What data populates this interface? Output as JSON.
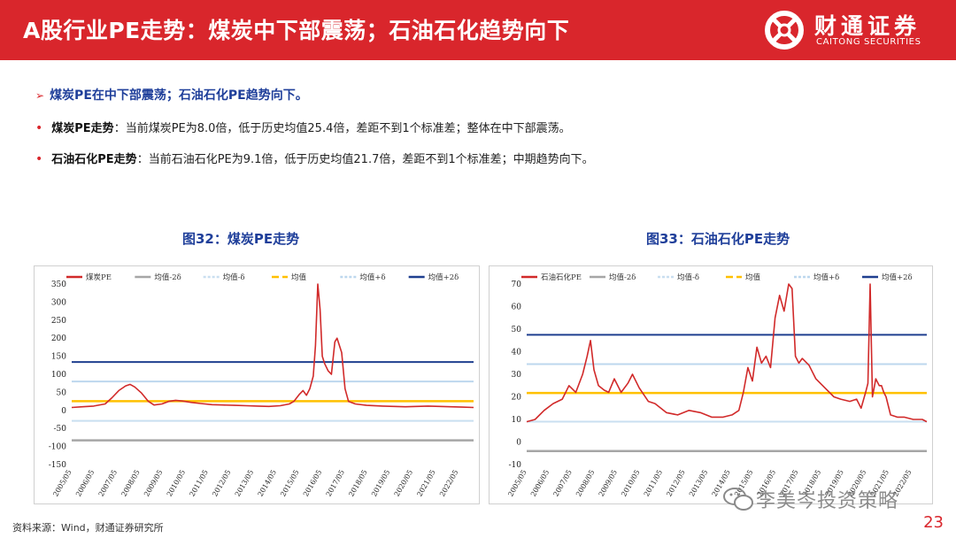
{
  "header": {
    "title": "A股行业PE走势：煤炭中下部震荡；石油石化趋势向下",
    "logo_cn": "财通证券",
    "logo_en": "CAITONG SECURITIES",
    "bg_color": "#d9262c"
  },
  "summary": {
    "arrow_icon": "➢",
    "text": "煤炭PE在中下部震荡；石油石化PE趋势向下。"
  },
  "bullets": [
    {
      "label": "煤炭PE走势",
      "text": "：当前煤炭PE为8.0倍，低于历史均值25.4倍，差距不到1个标准差；整体在中下部震荡。"
    },
    {
      "label": "石油石化PE走势",
      "text": "：当前石油石化PE为9.1倍，低于历史均值21.7倍，差距不到1个标准差；中期趋势向下。"
    }
  ],
  "figures": [
    {
      "title": "图32：煤炭PE走势"
    },
    {
      "title": "图33：石油石化PE走势"
    }
  ],
  "chart_data": [
    {
      "type": "line",
      "title": "图32：煤炭PE走势",
      "legend": [
        "煤炭PE",
        "均值-2δ",
        "均值-δ",
        "均值",
        "均值+δ",
        "均值+2δ"
      ],
      "ylim": [
        -150,
        350
      ],
      "yticks": [
        350,
        300,
        250,
        200,
        150,
        100,
        50,
        0,
        -50,
        -100,
        -150
      ],
      "xticks": [
        "2005/05",
        "2006/05",
        "2007/05",
        "2008/05",
        "2009/05",
        "2010/05",
        "2011/05",
        "2012/05",
        "2013/05",
        "2014/05",
        "2015/05",
        "2016/05",
        "2017/05",
        "2018/05",
        "2019/05",
        "2020/05",
        "2021/05",
        "2022/05"
      ],
      "xrange": [
        2005.33,
        2023.0
      ],
      "bands": {
        "mean_minus_2sd": -83,
        "mean_minus_sd": -29,
        "mean": 25.4,
        "mean_plus_sd": 80,
        "mean_plus_2sd": 134
      },
      "series": [
        {
          "name": "煤炭PE",
          "x": [
            2005.33,
            2005.8,
            2006.3,
            2006.8,
            2007.1,
            2007.4,
            2007.7,
            2007.9,
            2008.1,
            2008.4,
            2008.7,
            2008.95,
            2009.3,
            2009.6,
            2009.9,
            2010.2,
            2010.6,
            2011.0,
            2011.5,
            2012.0,
            2012.5,
            2013.0,
            2013.5,
            2014.0,
            2014.5,
            2014.9,
            2015.1,
            2015.35,
            2015.5,
            2015.65,
            2015.8,
            2015.95,
            2016.05,
            2016.15,
            2016.25,
            2016.35,
            2016.45,
            2016.6,
            2016.75,
            2016.9,
            2017.0,
            2017.1,
            2017.2,
            2017.35,
            2017.5,
            2017.8,
            2018.3,
            2019.0,
            2019.5,
            2020.0,
            2020.5,
            2021.0,
            2021.5,
            2022.0,
            2022.5,
            2023.0
          ],
          "y": [
            8,
            10,
            12,
            18,
            35,
            55,
            68,
            72,
            65,
            48,
            25,
            15,
            18,
            25,
            28,
            26,
            22,
            19,
            16,
            15,
            14,
            13,
            12,
            11,
            13,
            18,
            25,
            45,
            55,
            42,
            60,
            95,
            180,
            350,
            280,
            150,
            130,
            110,
            100,
            190,
            200,
            180,
            160,
            60,
            25,
            18,
            14,
            12,
            11,
            10,
            11,
            12,
            11,
            10,
            9,
            8
          ]
        }
      ]
    },
    {
      "type": "line",
      "title": "图33：石油石化PE走势",
      "legend": [
        "石油石化PE",
        "均值-2δ",
        "均值-δ",
        "均值",
        "均值+δ",
        "均值+2δ"
      ],
      "ylim": [
        -10,
        70
      ],
      "yticks": [
        70,
        60,
        50,
        40,
        30,
        20,
        10,
        0,
        -10
      ],
      "xticks": [
        "2005/05",
        "2006/05",
        "2007/05",
        "2008/05",
        "2009/05",
        "2010/05",
        "2011/05",
        "2012/05",
        "2013/05",
        "2014/05",
        "2015/05",
        "2016/05",
        "2017/05",
        "2018/05",
        "2019/05",
        "2020/05",
        "2021/05",
        "2022/05"
      ],
      "xrange": [
        2005.33,
        2023.0
      ],
      "bands": {
        "mean_minus_2sd": -4,
        "mean_minus_sd": 9,
        "mean": 21.7,
        "mean_plus_sd": 34.5,
        "mean_plus_2sd": 47.5
      },
      "series": [
        {
          "name": "石油石化PE",
          "x": [
            2005.33,
            2005.7,
            2006.1,
            2006.5,
            2006.9,
            2007.2,
            2007.5,
            2007.8,
            2008.0,
            2008.15,
            2008.3,
            2008.5,
            2008.75,
            2008.95,
            2009.2,
            2009.5,
            2009.8,
            2010.0,
            2010.3,
            2010.7,
            2011.0,
            2011.5,
            2012.0,
            2012.5,
            2013.0,
            2013.5,
            2014.0,
            2014.4,
            2014.7,
            2014.9,
            2015.1,
            2015.3,
            2015.5,
            2015.7,
            2015.9,
            2016.1,
            2016.3,
            2016.5,
            2016.7,
            2016.9,
            2017.05,
            2017.2,
            2017.35,
            2017.5,
            2017.8,
            2018.1,
            2018.5,
            2018.9,
            2019.2,
            2019.6,
            2019.9,
            2020.1,
            2020.3,
            2020.4,
            2020.5,
            2020.6,
            2020.75,
            2020.9,
            2021.0,
            2021.1,
            2021.2,
            2021.4,
            2021.7,
            2022.0,
            2022.4,
            2022.8,
            2023.0
          ],
          "y": [
            9,
            10,
            14,
            17,
            19,
            25,
            22,
            30,
            38,
            45,
            32,
            25,
            23,
            22,
            28,
            22,
            26,
            30,
            24,
            18,
            17,
            13,
            12,
            14,
            13,
            11,
            11,
            12,
            14,
            22,
            33,
            27,
            42,
            35,
            38,
            33,
            55,
            65,
            58,
            70,
            68,
            38,
            35,
            37,
            34,
            28,
            24,
            20,
            19,
            18,
            19,
            15,
            22,
            26,
            70,
            20,
            28,
            25,
            25,
            22,
            20,
            12,
            11,
            11,
            10,
            10,
            9
          ]
        }
      ]
    }
  ],
  "source": "资料来源：Wind，财通证券研究所",
  "page_number": "23",
  "watermark": "李美岑投资策略",
  "colors": {
    "series": "#d12a2a",
    "mean_minus_2sd": "#a6a6a6",
    "mean_minus_sd": "#c9dff0",
    "mean": "#ffc000",
    "mean_plus_sd": "#bdd7ee",
    "mean_plus_2sd": "#1f3f8f"
  }
}
